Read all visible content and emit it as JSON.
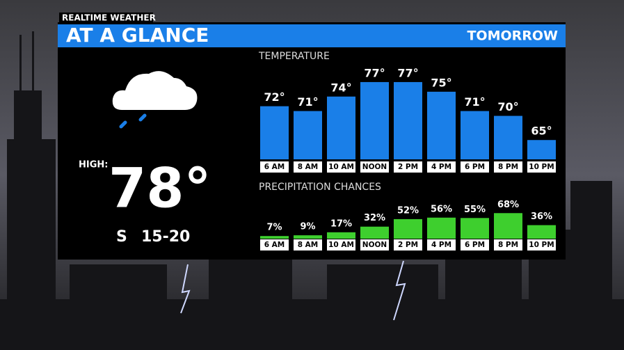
{
  "brand": "REALTIME WEATHER",
  "header": {
    "title": "AT A GLANCE",
    "period": "TOMORROW"
  },
  "current": {
    "high_label": "HIGH:",
    "high": "78°",
    "wind_direction": "S",
    "wind_speed": "15-20"
  },
  "chart_data": [
    {
      "type": "bar",
      "title": "TEMPERATURE",
      "categories": [
        "6 AM",
        "8 AM",
        "10 AM",
        "NOON",
        "2 PM",
        "4 PM",
        "6 PM",
        "8 PM",
        "10 PM"
      ],
      "values": [
        72,
        71,
        74,
        77,
        77,
        75,
        71,
        70,
        65
      ],
      "value_labels": [
        "72°",
        "71°",
        "74°",
        "77°",
        "77°",
        "75°",
        "71°",
        "70°",
        "65°"
      ],
      "color": "#1a7fe8",
      "ylim": [
        61,
        78
      ]
    },
    {
      "type": "bar",
      "title": "PRECIPITATION CHANCES",
      "categories": [
        "6 AM",
        "8 AM",
        "10 AM",
        "NOON",
        "2 PM",
        "4 PM",
        "6 PM",
        "8 PM",
        "10 PM"
      ],
      "values": [
        7,
        9,
        17,
        32,
        52,
        56,
        55,
        68,
        36
      ],
      "value_labels": [
        "7%",
        "9%",
        "17%",
        "32%",
        "52%",
        "56%",
        "55%",
        "68%",
        "36%"
      ],
      "color": "#3ecf2e",
      "ylim": [
        0,
        100
      ]
    }
  ]
}
